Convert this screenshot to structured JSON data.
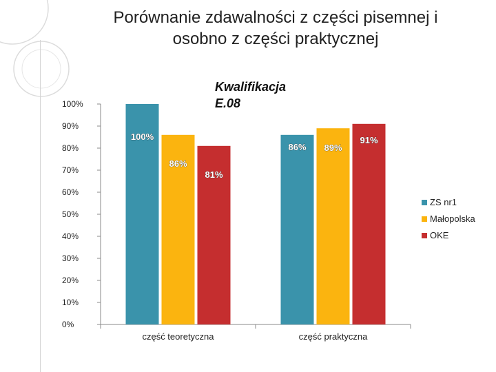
{
  "title": {
    "line1": "Porównanie zdawalności z części pisemnej i",
    "line2": "osobno z części praktycznej"
  },
  "chart_data": {
    "type": "bar",
    "title": "Kwalifikacja E.08",
    "title_lines": [
      "Kwalifikacja",
      "E.08"
    ],
    "categories": [
      "część teoretyczna",
      "część praktyczna"
    ],
    "series": [
      {
        "name": "ZS nr1",
        "values": [
          100,
          86
        ],
        "labels": [
          "100%",
          "86%"
        ],
        "color": "#3a93ab"
      },
      {
        "name": "Małopolska",
        "values": [
          86,
          89
        ],
        "labels": [
          "86%",
          "89%"
        ],
        "color": "#fbb40f"
      },
      {
        "name": "OKE",
        "values": [
          81,
          91
        ],
        "labels": [
          "81%",
          "91%"
        ],
        "color": "#c52e2f"
      }
    ],
    "ylim": [
      0,
      100
    ],
    "yticks": [
      "0%",
      "10%",
      "20%",
      "30%",
      "40%",
      "50%",
      "60%",
      "70%",
      "80%",
      "90%",
      "100%"
    ],
    "xlabel": "",
    "ylabel": "",
    "grid": false,
    "legend": "right"
  }
}
